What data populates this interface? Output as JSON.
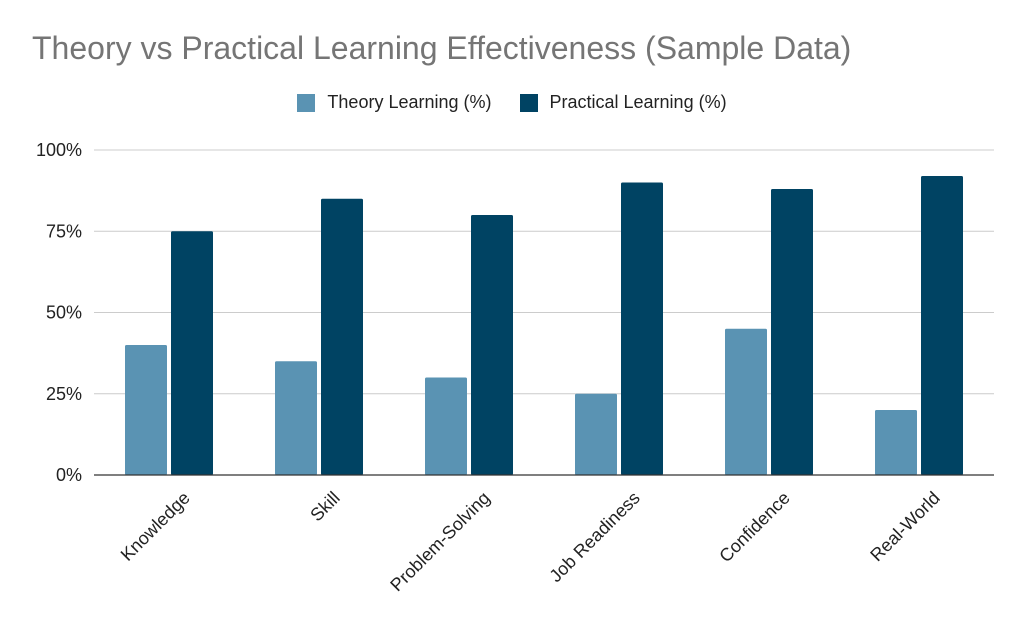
{
  "chart_data": {
    "type": "bar",
    "title": "Theory vs Practical Learning Effectiveness (Sample Data)",
    "categories": [
      "Knowledge",
      "Skill",
      "Problem-Solving",
      "Job Readiness",
      "Confidence",
      "Real-World"
    ],
    "series": [
      {
        "name": "Theory Learning (%)",
        "values": [
          40,
          35,
          30,
          25,
          45,
          20
        ],
        "color": "#5a93b3"
      },
      {
        "name": "Practical Learning (%)",
        "values": [
          75,
          85,
          80,
          90,
          88,
          92
        ],
        "color": "#004363"
      }
    ],
    "xlabel": "",
    "ylabel": "",
    "ylim": [
      0,
      100
    ],
    "yticks": [
      "0%",
      "25%",
      "50%",
      "75%",
      "100%"
    ],
    "legend_position": "top-center",
    "grid": true
  }
}
